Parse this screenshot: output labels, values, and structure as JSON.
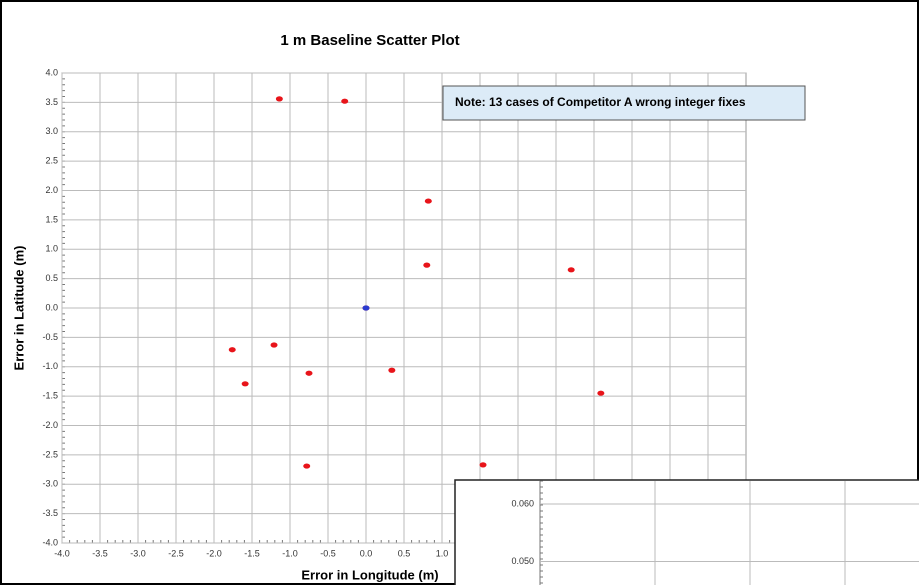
{
  "chart_data": [
    {
      "type": "scatter",
      "title": "1 m Baseline Scatter Plot",
      "xlabel": "Error in Longitude (m)",
      "ylabel": "Error in Latitude (m)",
      "annotation": "Note: 13 cases of Competitor A wrong integer fixes",
      "xlim": [
        -4,
        5
      ],
      "ylim": [
        -4,
        4
      ],
      "xticks": [
        {
          "value": -4,
          "label": "-4.0"
        },
        -3.5,
        {
          "value": -3,
          "label": "-3.0"
        },
        -2.5,
        {
          "value": -2,
          "label": "-2.0"
        },
        -1.5,
        {
          "value": -1,
          "label": "-1.0"
        },
        -0.5,
        {
          "value": 0,
          "label": "0.0"
        },
        0.5,
        {
          "value": 1,
          "label": "1.0"
        }
      ],
      "yticks": [
        {
          "value": 4,
          "label": "4.0"
        },
        3.5,
        {
          "value": 3,
          "label": "3.0"
        },
        2.5,
        {
          "value": 2,
          "label": "2.0"
        },
        1.5,
        {
          "value": 1,
          "label": "1.0"
        },
        0.5,
        {
          "value": 0,
          "label": "0.0"
        },
        -0.5,
        {
          "value": -1,
          "label": "-1.0"
        },
        -1.5,
        {
          "value": -2,
          "label": "-2.0"
        },
        -2.5,
        {
          "value": -3,
          "label": "-3.0"
        },
        -3.5,
        {
          "value": -4,
          "label": "-4.0"
        }
      ],
      "grid": true,
      "series": [
        {
          "color": "#e8141a",
          "x": [
            -1.14,
            -0.28,
            0.82,
            0.8,
            2.7,
            -1.76,
            -1.21,
            -0.75,
            0.34,
            -1.59,
            3.09,
            -0.78,
            1.54,
            0
          ],
          "values": [
            3.56,
            3.52,
            1.82,
            0.73,
            0.65,
            -0.71,
            -0.63,
            -1.11,
            -1.06,
            -1.29,
            -1.45,
            -2.69,
            -2.67,
            0
          ]
        },
        {
          "color": "#2a3bd0",
          "x": [
            0
          ],
          "values": [
            0
          ]
        }
      ]
    },
    {
      "type": "scatter",
      "ylim": [
        0.0459,
        0.064
      ],
      "yticks": [
        {
          "value": 0.05,
          "label": "0.050"
        },
        {
          "value": 0.06,
          "label": "0.060"
        }
      ],
      "grid": true
    }
  ]
}
